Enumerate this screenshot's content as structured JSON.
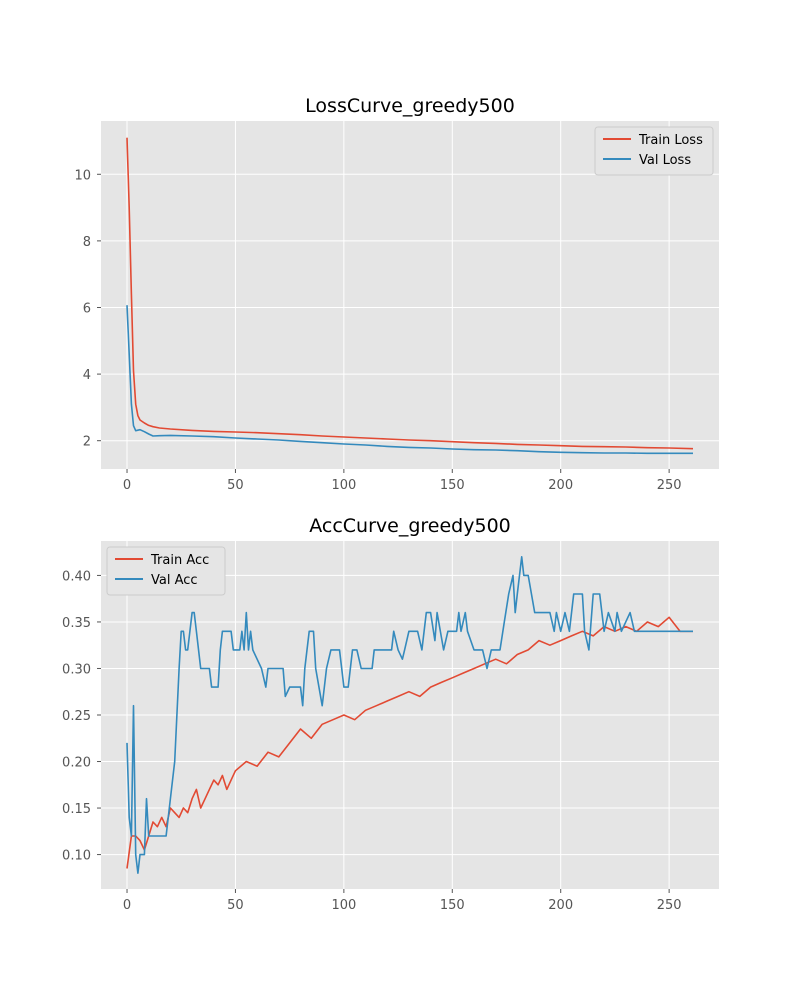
{
  "chart_data": [
    {
      "type": "line",
      "title": "LossCurve_greedy500",
      "xlabel": "",
      "ylabel": "",
      "xlim": [
        -12,
        273
      ],
      "ylim": [
        1.15,
        11.6
      ],
      "xticks": [
        0,
        50,
        100,
        150,
        200,
        250
      ],
      "yticks": [
        2,
        4,
        6,
        8,
        10
      ],
      "grid": true,
      "legend": "top-right",
      "x_max": 261,
      "series": [
        {
          "name": "Train Loss",
          "color": "#e24a33",
          "points": [
            [
              0,
              11.1
            ],
            [
              1,
              9.0
            ],
            [
              2,
              6.4
            ],
            [
              3,
              4.1
            ],
            [
              4,
              3.1
            ],
            [
              5,
              2.75
            ],
            [
              6,
              2.62
            ],
            [
              8,
              2.53
            ],
            [
              10,
              2.46
            ],
            [
              12,
              2.42
            ],
            [
              15,
              2.38
            ],
            [
              20,
              2.35
            ],
            [
              30,
              2.31
            ],
            [
              40,
              2.28
            ],
            [
              50,
              2.26
            ],
            [
              60,
              2.24
            ],
            [
              70,
              2.21
            ],
            [
              80,
              2.18
            ],
            [
              90,
              2.14
            ],
            [
              100,
              2.11
            ],
            [
              110,
              2.08
            ],
            [
              120,
              2.05
            ],
            [
              130,
              2.02
            ],
            [
              140,
              2.0
            ],
            [
              150,
              1.97
            ],
            [
              160,
              1.94
            ],
            [
              170,
              1.92
            ],
            [
              180,
              1.89
            ],
            [
              190,
              1.87
            ],
            [
              200,
              1.85
            ],
            [
              210,
              1.83
            ],
            [
              220,
              1.82
            ],
            [
              230,
              1.81
            ],
            [
              240,
              1.79
            ],
            [
              250,
              1.78
            ],
            [
              261,
              1.76
            ]
          ]
        },
        {
          "name": "Val Loss",
          "color": "#348abd",
          "points": [
            [
              0,
              6.07
            ],
            [
              1,
              4.6
            ],
            [
              2,
              3.1
            ],
            [
              3,
              2.45
            ],
            [
              4,
              2.3
            ],
            [
              6,
              2.33
            ],
            [
              8,
              2.27
            ],
            [
              10,
              2.2
            ],
            [
              12,
              2.14
            ],
            [
              15,
              2.15
            ],
            [
              20,
              2.16
            ],
            [
              30,
              2.14
            ],
            [
              40,
              2.12
            ],
            [
              50,
              2.08
            ],
            [
              60,
              2.05
            ],
            [
              70,
              2.02
            ],
            [
              80,
              1.98
            ],
            [
              90,
              1.94
            ],
            [
              100,
              1.9
            ],
            [
              110,
              1.87
            ],
            [
              120,
              1.83
            ],
            [
              130,
              1.8
            ],
            [
              140,
              1.78
            ],
            [
              150,
              1.75
            ],
            [
              160,
              1.73
            ],
            [
              170,
              1.72
            ],
            [
              180,
              1.7
            ],
            [
              190,
              1.67
            ],
            [
              200,
              1.65
            ],
            [
              210,
              1.64
            ],
            [
              220,
              1.63
            ],
            [
              230,
              1.63
            ],
            [
              240,
              1.62
            ],
            [
              250,
              1.62
            ],
            [
              261,
              1.62
            ]
          ]
        }
      ]
    },
    {
      "type": "line",
      "title": "AccCurve_greedy500",
      "xlabel": "",
      "ylabel": "",
      "xlim": [
        -12,
        273
      ],
      "ylim": [
        0.063,
        0.437
      ],
      "xticks": [
        0,
        50,
        100,
        150,
        200,
        250
      ],
      "yticks": [
        0.1,
        0.15,
        0.2,
        0.25,
        0.3,
        0.35,
        0.4
      ],
      "grid": true,
      "legend": "top-left",
      "x_max": 261,
      "series": [
        {
          "name": "Train Acc",
          "color": "#e24a33",
          "points": [
            [
              0,
              0.085
            ],
            [
              2,
              0.12
            ],
            [
              4,
              0.12
            ],
            [
              6,
              0.115
            ],
            [
              8,
              0.105
            ],
            [
              10,
              0.12
            ],
            [
              12,
              0.135
            ],
            [
              14,
              0.13
            ],
            [
              16,
              0.14
            ],
            [
              18,
              0.13
            ],
            [
              20,
              0.15
            ],
            [
              22,
              0.145
            ],
            [
              24,
              0.14
            ],
            [
              26,
              0.15
            ],
            [
              28,
              0.145
            ],
            [
              30,
              0.16
            ],
            [
              32,
              0.17
            ],
            [
              34,
              0.15
            ],
            [
              36,
              0.16
            ],
            [
              38,
              0.17
            ],
            [
              40,
              0.18
            ],
            [
              42,
              0.175
            ],
            [
              44,
              0.185
            ],
            [
              46,
              0.17
            ],
            [
              48,
              0.18
            ],
            [
              50,
              0.19
            ],
            [
              55,
              0.2
            ],
            [
              60,
              0.195
            ],
            [
              65,
              0.21
            ],
            [
              70,
              0.205
            ],
            [
              75,
              0.22
            ],
            [
              80,
              0.235
            ],
            [
              85,
              0.225
            ],
            [
              90,
              0.24
            ],
            [
              95,
              0.245
            ],
            [
              100,
              0.25
            ],
            [
              105,
              0.245
            ],
            [
              110,
              0.255
            ],
            [
              115,
              0.26
            ],
            [
              120,
              0.265
            ],
            [
              125,
              0.27
            ],
            [
              130,
              0.275
            ],
            [
              135,
              0.27
            ],
            [
              140,
              0.28
            ],
            [
              145,
              0.285
            ],
            [
              150,
              0.29
            ],
            [
              155,
              0.295
            ],
            [
              160,
              0.3
            ],
            [
              165,
              0.305
            ],
            [
              170,
              0.31
            ],
            [
              175,
              0.305
            ],
            [
              180,
              0.315
            ],
            [
              185,
              0.32
            ],
            [
              190,
              0.33
            ],
            [
              195,
              0.325
            ],
            [
              200,
              0.33
            ],
            [
              205,
              0.335
            ],
            [
              210,
              0.34
            ],
            [
              215,
              0.335
            ],
            [
              220,
              0.345
            ],
            [
              225,
              0.34
            ],
            [
              230,
              0.345
            ],
            [
              235,
              0.34
            ],
            [
              240,
              0.35
            ],
            [
              245,
              0.345
            ],
            [
              250,
              0.355
            ],
            [
              255,
              0.34
            ],
            [
              261,
              0.34
            ]
          ]
        },
        {
          "name": "Val Acc",
          "color": "#348abd",
          "points": [
            [
              0,
              0.22
            ],
            [
              1,
              0.14
            ],
            [
              2,
              0.12
            ],
            [
              3,
              0.26
            ],
            [
              4,
              0.1
            ],
            [
              5,
              0.08
            ],
            [
              6,
              0.1
            ],
            [
              8,
              0.1
            ],
            [
              9,
              0.16
            ],
            [
              10,
              0.12
            ],
            [
              12,
              0.12
            ],
            [
              18,
              0.12
            ],
            [
              20,
              0.16
            ],
            [
              22,
              0.2
            ],
            [
              24,
              0.3
            ],
            [
              25,
              0.34
            ],
            [
              26,
              0.34
            ],
            [
              27,
              0.32
            ],
            [
              28,
              0.32
            ],
            [
              30,
              0.36
            ],
            [
              31,
              0.36
            ],
            [
              32,
              0.34
            ],
            [
              34,
              0.3
            ],
            [
              36,
              0.3
            ],
            [
              38,
              0.3
            ],
            [
              39,
              0.28
            ],
            [
              42,
              0.28
            ],
            [
              43,
              0.32
            ],
            [
              44,
              0.34
            ],
            [
              48,
              0.34
            ],
            [
              49,
              0.32
            ],
            [
              52,
              0.32
            ],
            [
              53,
              0.34
            ],
            [
              54,
              0.32
            ],
            [
              55,
              0.36
            ],
            [
              56,
              0.32
            ],
            [
              57,
              0.34
            ],
            [
              58,
              0.32
            ],
            [
              62,
              0.3
            ],
            [
              64,
              0.28
            ],
            [
              65,
              0.3
            ],
            [
              72,
              0.3
            ],
            [
              73,
              0.27
            ],
            [
              75,
              0.28
            ],
            [
              80,
              0.28
            ],
            [
              81,
              0.26
            ],
            [
              82,
              0.3
            ],
            [
              83,
              0.32
            ],
            [
              84,
              0.34
            ],
            [
              86,
              0.34
            ],
            [
              87,
              0.3
            ],
            [
              90,
              0.26
            ],
            [
              92,
              0.3
            ],
            [
              94,
              0.32
            ],
            [
              98,
              0.32
            ],
            [
              100,
              0.28
            ],
            [
              102,
              0.28
            ],
            [
              104,
              0.32
            ],
            [
              106,
              0.32
            ],
            [
              108,
              0.3
            ],
            [
              113,
              0.3
            ],
            [
              114,
              0.32
            ],
            [
              122,
              0.32
            ],
            [
              123,
              0.34
            ],
            [
              125,
              0.32
            ],
            [
              127,
              0.31
            ],
            [
              128,
              0.32
            ],
            [
              130,
              0.34
            ],
            [
              134,
              0.34
            ],
            [
              136,
              0.32
            ],
            [
              138,
              0.36
            ],
            [
              140,
              0.36
            ],
            [
              142,
              0.33
            ],
            [
              143,
              0.36
            ],
            [
              146,
              0.32
            ],
            [
              148,
              0.34
            ],
            [
              152,
              0.34
            ],
            [
              153,
              0.36
            ],
            [
              154,
              0.34
            ],
            [
              156,
              0.36
            ],
            [
              157,
              0.34
            ],
            [
              160,
              0.32
            ],
            [
              164,
              0.32
            ],
            [
              166,
              0.3
            ],
            [
              168,
              0.32
            ],
            [
              172,
              0.32
            ],
            [
              174,
              0.35
            ],
            [
              176,
              0.38
            ],
            [
              178,
              0.4
            ],
            [
              179,
              0.36
            ],
            [
              180,
              0.38
            ],
            [
              182,
              0.42
            ],
            [
              183,
              0.4
            ],
            [
              185,
              0.4
            ],
            [
              188,
              0.36
            ],
            [
              195,
              0.36
            ],
            [
              197,
              0.34
            ],
            [
              198,
              0.36
            ],
            [
              200,
              0.34
            ],
            [
              202,
              0.36
            ],
            [
              204,
              0.34
            ],
            [
              206,
              0.38
            ],
            [
              210,
              0.38
            ],
            [
              211,
              0.34
            ],
            [
              213,
              0.32
            ],
            [
              215,
              0.38
            ],
            [
              218,
              0.38
            ],
            [
              220,
              0.34
            ],
            [
              222,
              0.36
            ],
            [
              225,
              0.34
            ],
            [
              226,
              0.36
            ],
            [
              228,
              0.34
            ],
            [
              232,
              0.36
            ],
            [
              234,
              0.34
            ],
            [
              261,
              0.34
            ]
          ]
        }
      ]
    }
  ]
}
